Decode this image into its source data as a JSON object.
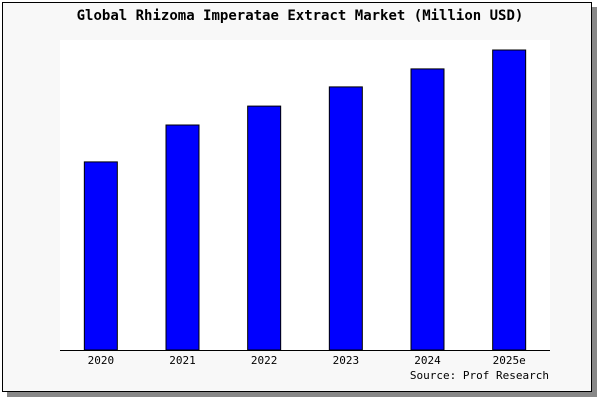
{
  "chart_data": {
    "type": "bar",
    "title": "Global Rhizoma Imperatae Extract Market (Million USD)",
    "categories": [
      "2020",
      "2021",
      "2022",
      "2023",
      "2024",
      "2025e"
    ],
    "values": [
      62.7,
      75.0,
      81.3,
      87.7,
      93.7,
      100.0
    ],
    "value_note_scale": "relative, 2025e = 100 (no y-axis printed)",
    "xlabel": "",
    "ylabel": "",
    "ylim": [
      0,
      100
    ],
    "grid": false,
    "bar_color": "#0000ff",
    "source": "Source: Prof Research"
  }
}
